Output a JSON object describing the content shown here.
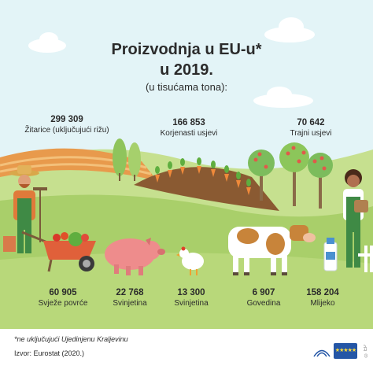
{
  "title_line1": "Proizvodnja u EU-u*",
  "title_line2": "u 2019.",
  "subtitle": "(u tisućama tona):",
  "stats": [
    {
      "value": "299 309",
      "label": "Žitarice (uključujući rižu)"
    },
    {
      "value": "166 853",
      "label": "Korjenasti usjevi"
    },
    {
      "value": "70 642",
      "label": "Trajni usjevi"
    },
    {
      "value": "60 905",
      "label": "Svježe povrće"
    },
    {
      "value": "22 768",
      "label": "Svinjetina"
    },
    {
      "value": "13 300",
      "label": "Svinjetina"
    },
    {
      "value": "6 907",
      "label": "Govedina"
    },
    {
      "value": "158 204",
      "label": "Mlijeko"
    }
  ],
  "footnote": "*ne uključujući Ujedinjenu Kraljevinu",
  "source": "Izvor: Eurostat (2020.)",
  "logo_text": "© EP",
  "colors": {
    "sky": "#e3f4f7",
    "grass": "#a9cf6a",
    "field_orange": "#e89a4c",
    "soil": "#8a5a32",
    "ep_blue": "#2456a6"
  }
}
